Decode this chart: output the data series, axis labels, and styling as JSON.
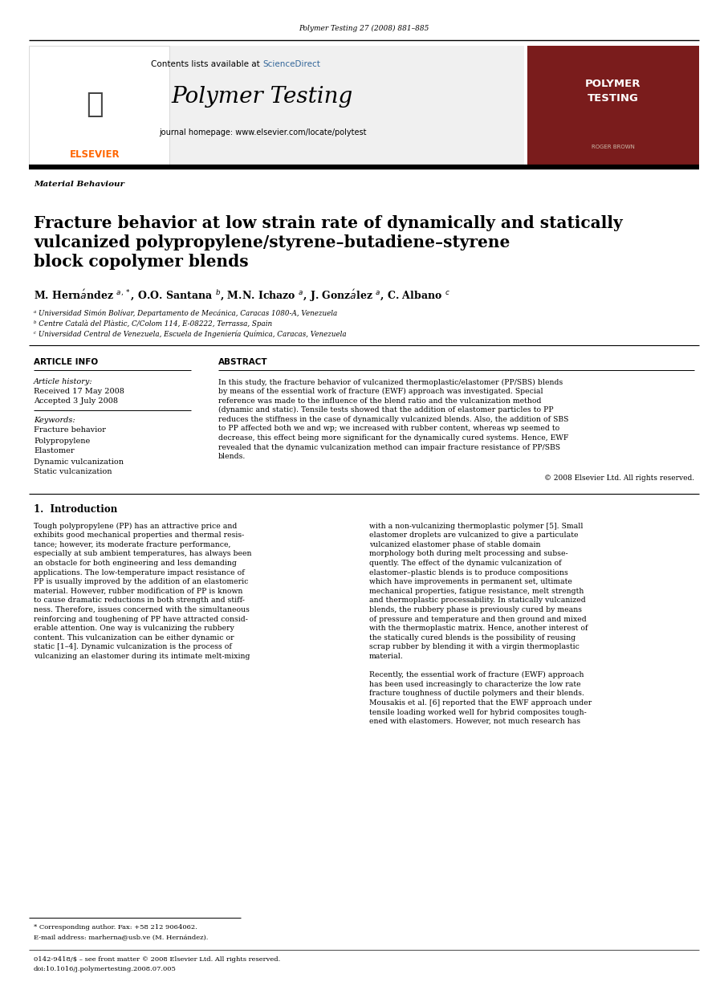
{
  "page_width": 9.07,
  "page_height": 12.38,
  "bg_color": "#ffffff",
  "journal_ref": "Polymer Testing 27 (2008) 881–885",
  "header_bg": "#eeeeee",
  "sciencedirect_color": "#336699",
  "journal_title": "Polymer Testing",
  "journal_homepage": "journal homepage: www.elsevier.com/locate/polytest",
  "sidebar_bg": "#7a1c1c",
  "sidebar_title": "POLYMER\nTESTING",
  "sidebar_subtitle": "ROGER BROWN",
  "section_label": "Material Behaviour",
  "paper_title": "Fracture behavior at low strain rate of dynamically and statically\nvulcanized polypropylene/styrene–butadiene–styrene\nblock copolymer blends",
  "affil_a": "ᵃ Universidad Simón Bolívar, Departamento de Mecánica, Caracas 1080-A, Venezuela",
  "affil_b": "ᵇ Centre Català del Plàstic, C/Colom 114, E-08222, Terrassa, Spain",
  "affil_c": "ᶜ Universidad Central de Venezuela, Escuela de Ingeniería Química, Caracas, Venezuela",
  "article_info_title": "ARTICLE INFO",
  "abstract_title": "ABSTRACT",
  "article_history_label": "Article history:",
  "received": "Received 17 May 2008",
  "accepted": "Accepted 3 July 2008",
  "keywords_label": "Keywords:",
  "keywords": [
    "Fracture behavior",
    "Polypropylene",
    "Elastomer",
    "Dynamic vulcanization",
    "Static vulcanization"
  ],
  "copyright_line": "© 2008 Elsevier Ltd. All rights reserved.",
  "section1_title": "1.  Introduction",
  "footnote_star": "* Corresponding author. Fax: +58 212 9064062.",
  "footnote_email": "E-mail address: marherna@usb.ve (M. Hernández).",
  "footer_issn": "0142-9418/$ – see front matter © 2008 Elsevier Ltd. All rights reserved.",
  "footer_doi": "doi:10.1016/j.polymertesting.2008.07.005",
  "elsevier_color": "#FF6600",
  "abstract_lines": [
    "In this study, the fracture behavior of vulcanized thermoplastic/elastomer (PP/SBS) blends",
    "by means of the essential work of fracture (EWF) approach was investigated. Special",
    "reference was made to the influence of the blend ratio and the vulcanization method",
    "(dynamic and static). Tensile tests showed that the addition of elastomer particles to PP",
    "reduces the stiffness in the case of dynamically vulcanized blends. Also, the addition of SBS",
    "to PP affected both we and wp; we increased with rubber content, whereas wp seemed to",
    "decrease, this effect being more significant for the dynamically cured systems. Hence, EWF",
    "revealed that the dynamic vulcanization method can impair fracture resistance of PP/SBS",
    "blends."
  ],
  "intro_col1_lines": [
    "Tough polypropylene (PP) has an attractive price and",
    "exhibits good mechanical properties and thermal resis-",
    "tance; however, its moderate fracture performance,",
    "especially at sub ambient temperatures, has always been",
    "an obstacle for both engineering and less demanding",
    "applications. The low-temperature impact resistance of",
    "PP is usually improved by the addition of an elastomeric",
    "material. However, rubber modification of PP is known",
    "to cause dramatic reductions in both strength and stiff-",
    "ness. Therefore, issues concerned with the simultaneous",
    "reinforcing and toughening of PP have attracted consid-",
    "erable attention. One way is vulcanizing the rubbery",
    "content. This vulcanization can be either dynamic or",
    "static [1–4]. Dynamic vulcanization is the process of",
    "vulcanizing an elastomer during its intimate melt-mixing"
  ],
  "intro_col2_lines": [
    "with a non-vulcanizing thermoplastic polymer [5]. Small",
    "elastomer droplets are vulcanized to give a particulate",
    "vulcanized elastomer phase of stable domain",
    "morphology both during melt processing and subse-",
    "quently. The effect of the dynamic vulcanization of",
    "elastomer–plastic blends is to produce compositions",
    "which have improvements in permanent set, ultimate",
    "mechanical properties, fatigue resistance, melt strength",
    "and thermoplastic processability. In statically vulcanized",
    "blends, the rubbery phase is previously cured by means",
    "of pressure and temperature and then ground and mixed",
    "with the thermoplastic matrix. Hence, another interest of",
    "the statically cured blends is the possibility of reusing",
    "scrap rubber by blending it with a virgin thermoplastic",
    "material.",
    "",
    "Recently, the essential work of fracture (EWF) approach",
    "has been used increasingly to characterize the low rate",
    "fracture toughness of ductile polymers and their blends.",
    "Mousakis et al. [6] reported that the EWF approach under",
    "tensile loading worked well for hybrid composites tough-",
    "ened with elastomers. However, not much research has"
  ]
}
